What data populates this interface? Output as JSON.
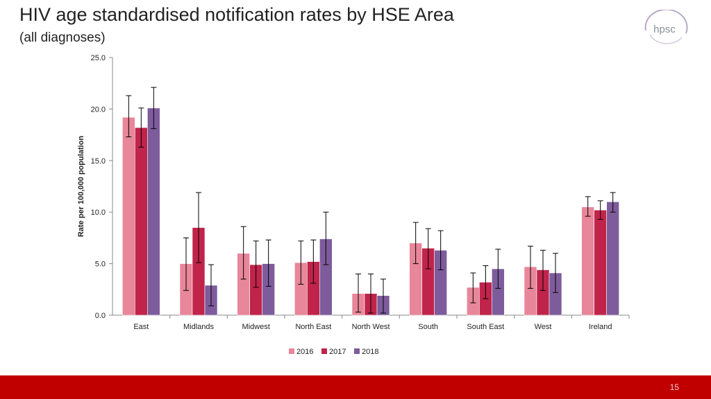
{
  "header": {
    "title": "HIV age standardised notification rates by HSE Area",
    "subtitle": "(all diagnoses)",
    "logo_text": "hpsc"
  },
  "footer": {
    "page_number": "15"
  },
  "colors": {
    "footer": "#c00000",
    "logo_arc": "#b7a9c9",
    "logo_text": "#8a8f98"
  },
  "chart_data": {
    "type": "bar",
    "title": "",
    "xlabel": "",
    "ylabel": "Rate per 100,000 population",
    "ylim": [
      0,
      25
    ],
    "yticks": [
      0,
      5,
      10,
      15,
      20,
      25
    ],
    "ytick_labels": [
      "0.0",
      "5.0",
      "10.0",
      "15.0",
      "20.0",
      "25.0"
    ],
    "grid": false,
    "legend_position": "bottom",
    "error_bars": true,
    "categories": [
      "East",
      "Midlands",
      "Midwest",
      "North East",
      "North West",
      "South",
      "South East",
      "West",
      "Ireland"
    ],
    "series": [
      {
        "name": "2016",
        "color": "#e8869a",
        "values": [
          19.2,
          5.0,
          6.0,
          5.1,
          2.1,
          7.0,
          2.7,
          4.7,
          10.5
        ],
        "err_low": [
          17.3,
          2.4,
          3.5,
          3.0,
          0.3,
          5.0,
          1.2,
          2.6,
          9.6
        ],
        "err_high": [
          21.3,
          7.5,
          8.6,
          7.2,
          4.0,
          9.0,
          4.1,
          6.7,
          11.5
        ]
      },
      {
        "name": "2017",
        "color": "#c0244a",
        "values": [
          18.2,
          8.5,
          4.9,
          5.2,
          2.1,
          6.5,
          3.2,
          4.4,
          10.2
        ],
        "err_low": [
          16.3,
          5.1,
          2.7,
          3.1,
          0.2,
          4.5,
          1.6,
          2.4,
          9.3
        ],
        "err_high": [
          20.1,
          11.9,
          7.2,
          7.3,
          4.0,
          8.4,
          4.8,
          6.3,
          11.1
        ]
      },
      {
        "name": "2018",
        "color": "#7e5c9c",
        "values": [
          20.1,
          2.9,
          5.0,
          7.4,
          1.9,
          6.3,
          4.5,
          4.1,
          11.0
        ],
        "err_low": [
          18.1,
          0.9,
          2.8,
          4.9,
          0.2,
          4.4,
          2.6,
          2.2,
          10.0
        ],
        "err_high": [
          22.1,
          4.9,
          7.3,
          10.0,
          3.5,
          8.2,
          6.4,
          6.0,
          11.9
        ]
      }
    ]
  }
}
